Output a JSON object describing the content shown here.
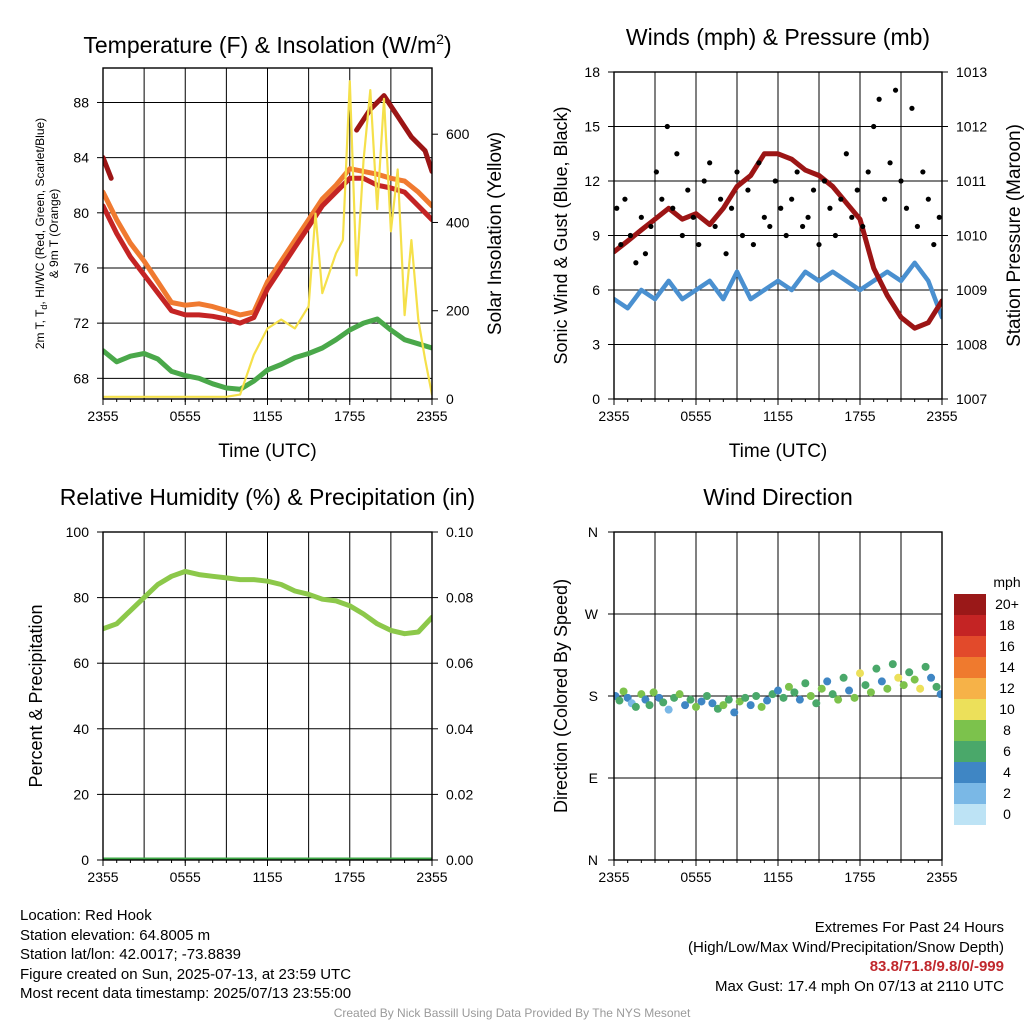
{
  "chart_data": [
    {
      "id": "temp",
      "type": "line",
      "title": "Temperature (F) & Insolation (W/m",
      "title_sup": "2",
      "title_tail": ")",
      "xlabel": "Time (UTC)",
      "ylabel_lines": [
        "2m T, T",
        "d",
        ", HI/WC (Red, Green, Scarlet/Blue)",
        "& 9m T (Orange)"
      ],
      "y2label": "Solar Insolation (Yellow)",
      "x_ticks": [
        "2355",
        "0555",
        "1155",
        "1755",
        "2355"
      ],
      "x_range": [
        0,
        24
      ],
      "ylim": [
        66.5,
        90.5
      ],
      "y_ticks": [
        68,
        72,
        76,
        80,
        84,
        88
      ],
      "y2lim": [
        0,
        750
      ],
      "y2_ticks": [
        0,
        200,
        400,
        600
      ],
      "grid": true,
      "series": [
        {
          "color": "#f07a30",
          "axis": "left",
          "x": [
            0,
            1,
            2,
            3,
            4,
            5,
            6,
            7,
            8,
            9,
            10,
            11,
            12,
            13,
            14,
            15,
            16,
            17,
            18,
            19,
            20,
            21,
            22,
            23,
            24
          ],
          "values": [
            81.5,
            79.5,
            77.8,
            76.5,
            75.0,
            73.5,
            73.3,
            73.4,
            73.2,
            72.9,
            72.6,
            72.8,
            75.0,
            76.5,
            78.0,
            79.5,
            81.0,
            82.0,
            83.2,
            83.0,
            82.8,
            82.5,
            82.3,
            81.5,
            80.5
          ]
        },
        {
          "color": "#c42424",
          "axis": "left",
          "x": [
            0,
            1,
            2,
            3,
            4,
            5,
            6,
            7,
            8,
            9,
            10,
            11,
            12,
            13,
            14,
            15,
            16,
            17,
            18,
            19,
            20,
            21,
            22,
            23,
            24
          ],
          "values": [
            80.5,
            78.5,
            76.8,
            75.5,
            74.2,
            72.9,
            72.6,
            72.6,
            72.5,
            72.3,
            72.0,
            72.4,
            74.5,
            76.0,
            77.5,
            79.0,
            80.5,
            81.5,
            82.5,
            82.5,
            82.0,
            81.8,
            81.5,
            80.5,
            79.5
          ]
        },
        {
          "color": "#9c1515",
          "axis": "left",
          "x": [
            0,
            0.6,
            17.5,
            18.5,
            19.5,
            20.5,
            21.5,
            22.5,
            23.5,
            24
          ],
          "values": [
            84.0,
            82.5,
            null,
            86.0,
            87.5,
            88.5,
            87.0,
            85.5,
            84.5,
            83.0
          ]
        },
        {
          "color": "#4aa84a",
          "axis": "left",
          "x": [
            0,
            1,
            2,
            3,
            4,
            5,
            6,
            7,
            8,
            9,
            10,
            11,
            12,
            13,
            14,
            15,
            16,
            17,
            18,
            19,
            20,
            21,
            22,
            23,
            24
          ],
          "values": [
            70.0,
            69.2,
            69.6,
            69.8,
            69.4,
            68.5,
            68.2,
            68.0,
            67.6,
            67.3,
            67.2,
            67.8,
            68.6,
            69.0,
            69.5,
            69.8,
            70.2,
            70.8,
            71.5,
            72.0,
            72.3,
            71.5,
            70.8,
            70.5,
            70.2
          ]
        },
        {
          "color": "#f5e04a",
          "axis": "right",
          "x": [
            0,
            8,
            9,
            10,
            11,
            12,
            13,
            14,
            15,
            15.5,
            16,
            17,
            17.5,
            18,
            18.5,
            19,
            19.5,
            20,
            20.5,
            21,
            21.5,
            22,
            22.5,
            23,
            23.5,
            24
          ],
          "values": [
            5,
            5,
            5,
            10,
            100,
            160,
            180,
            160,
            210,
            420,
            240,
            330,
            360,
            720,
            280,
            540,
            700,
            430,
            680,
            380,
            520,
            190,
            360,
            180,
            90,
            10
          ]
        }
      ]
    },
    {
      "id": "winds",
      "type": "line",
      "title": "Winds (mph) & Pressure (mb)",
      "xlabel": "Time (UTC)",
      "ylabel": "Sonic Wind & Gust (Blue, Black)",
      "y2label": "Station Pressure (Maroon)",
      "x_ticks": [
        "2355",
        "0555",
        "1155",
        "1755",
        "2355"
      ],
      "x_range": [
        0,
        24
      ],
      "ylim": [
        0,
        18
      ],
      "y_ticks": [
        0,
        3,
        6,
        9,
        12,
        15,
        18
      ],
      "y2lim": [
        1007,
        1013
      ],
      "y2_ticks": [
        1007,
        1008,
        1009,
        1010,
        1011,
        1012,
        1013
      ],
      "grid": true,
      "series": [
        {
          "color": "#4a90d0",
          "axis": "left",
          "x": [
            0,
            1,
            2,
            3,
            4,
            5,
            6,
            7,
            8,
            9,
            10,
            11,
            12,
            13,
            14,
            15,
            16,
            17,
            18,
            19,
            20,
            21,
            22,
            23,
            24
          ],
          "values": [
            5.5,
            5.0,
            6.0,
            5.5,
            6.5,
            5.5,
            6.0,
            6.5,
            5.5,
            7.0,
            5.5,
            6.0,
            6.5,
            6.0,
            7.0,
            6.5,
            7.0,
            6.5,
            6.0,
            6.5,
            7.0,
            6.5,
            7.5,
            6.5,
            4.5
          ]
        },
        {
          "color": "#9c1515",
          "axis": "right",
          "x": [
            0,
            1,
            2,
            3,
            4,
            5,
            6,
            7,
            8,
            9,
            10,
            11,
            12,
            13,
            14,
            15,
            16,
            17,
            18,
            19,
            20,
            21,
            22,
            23,
            24
          ],
          "values": [
            1009.7,
            1009.9,
            1010.1,
            1010.3,
            1010.5,
            1010.3,
            1010.4,
            1010.2,
            1010.5,
            1010.9,
            1011.1,
            1011.5,
            1011.5,
            1011.4,
            1011.2,
            1011.1,
            1010.9,
            1010.6,
            1010.3,
            1009.4,
            1008.9,
            1008.5,
            1008.3,
            1008.4,
            1008.8
          ]
        }
      ],
      "gust_dots": {
        "color": "#000000",
        "x": [
          0.2,
          0.5,
          0.8,
          1.2,
          1.6,
          2.0,
          2.3,
          2.7,
          3.1,
          3.5,
          3.9,
          4.3,
          4.6,
          5.0,
          5.4,
          5.8,
          6.2,
          6.6,
          7.0,
          7.4,
          7.8,
          8.2,
          8.6,
          9.0,
          9.4,
          9.8,
          10.2,
          10.6,
          11.0,
          11.4,
          11.8,
          12.2,
          12.6,
          13.0,
          13.4,
          13.8,
          14.2,
          14.6,
          15.0,
          15.4,
          15.8,
          16.2,
          16.6,
          17.0,
          17.4,
          17.8,
          18.2,
          18.6,
          19.0,
          19.4,
          19.8,
          20.2,
          20.6,
          21.0,
          21.4,
          21.8,
          22.2,
          22.6,
          23.0,
          23.4,
          23.8
        ],
        "values": [
          10.5,
          8.5,
          11.0,
          9.0,
          7.5,
          10.0,
          8.0,
          9.5,
          12.5,
          11.0,
          15.0,
          10.5,
          13.5,
          9.0,
          11.5,
          10.0,
          8.5,
          12.0,
          13.0,
          9.5,
          11.0,
          8.0,
          10.5,
          12.5,
          9.0,
          11.5,
          8.5,
          13.0,
          10.0,
          9.5,
          12.0,
          10.5,
          9.0,
          11.0,
          12.5,
          9.5,
          10.0,
          11.5,
          8.5,
          12.0,
          10.5,
          9.0,
          11.0,
          13.5,
          10.0,
          11.5,
          9.5,
          12.5,
          15.0,
          16.5,
          11.0,
          13.0,
          17.0,
          12.0,
          10.5,
          16.0,
          9.5,
          12.5,
          11.0,
          8.5,
          10.0
        ],
        "max_gust": 17.4
      }
    },
    {
      "id": "rh",
      "type": "line",
      "title": "Relative Humidity (%) & Precipitation (in)",
      "ylabel": "Percent & Precipitation",
      "x_ticks": [
        "2355",
        "0555",
        "1155",
        "1755",
        "2355"
      ],
      "x_range": [
        0,
        24
      ],
      "ylim": [
        0,
        100
      ],
      "y_ticks": [
        0,
        20,
        40,
        60,
        80,
        100
      ],
      "y2lim": [
        0,
        0.1
      ],
      "y2_ticks": [
        "0.00",
        "0.02",
        "0.04",
        "0.06",
        "0.08",
        "0.10"
      ],
      "grid": true,
      "series": [
        {
          "color": "#8cc84a",
          "axis": "left",
          "x": [
            0,
            1,
            2,
            3,
            4,
            5,
            6,
            7,
            8,
            9,
            10,
            11,
            12,
            13,
            14,
            15,
            16,
            17,
            18,
            19,
            20,
            21,
            22,
            23,
            24
          ],
          "values": [
            70.5,
            72.0,
            76.0,
            80.0,
            84.0,
            86.5,
            88.0,
            87.0,
            86.5,
            86.0,
            85.5,
            85.5,
            85.0,
            84.0,
            82.0,
            81.0,
            79.5,
            79.0,
            77.5,
            75.0,
            72.0,
            70.0,
            69.0,
            69.5,
            74.0
          ]
        },
        {
          "color": "#3fa847",
          "axis": "right",
          "x": [
            0,
            24
          ],
          "values": [
            0,
            0
          ]
        }
      ]
    },
    {
      "id": "wdir",
      "type": "scatter",
      "title": "Wind Direction",
      "ylabel": "Direction (Colored By Speed)",
      "x_ticks": [
        "2355",
        "0555",
        "1155",
        "1755",
        "2355"
      ],
      "x_range": [
        0,
        24
      ],
      "ylim": [
        0,
        360
      ],
      "y_ticks": [
        "N",
        "E",
        "S",
        "W",
        "N"
      ],
      "grid": true,
      "x": [
        0.1,
        0.4,
        0.7,
        1.0,
        1.3,
        1.6,
        2.0,
        2.3,
        2.6,
        2.9,
        3.3,
        3.6,
        4.0,
        4.4,
        4.8,
        5.2,
        5.6,
        6.0,
        6.4,
        6.8,
        7.2,
        7.6,
        8.0,
        8.4,
        8.8,
        9.2,
        9.6,
        10.0,
        10.4,
        10.8,
        11.2,
        11.6,
        12.0,
        12.4,
        12.8,
        13.2,
        13.6,
        14.0,
        14.4,
        14.8,
        15.2,
        15.6,
        16.0,
        16.4,
        16.8,
        17.2,
        17.6,
        18.0,
        18.4,
        18.8,
        19.2,
        19.6,
        20.0,
        20.4,
        20.8,
        21.2,
        21.6,
        22.0,
        22.4,
        22.8,
        23.2,
        23.6,
        23.9
      ],
      "values": [
        180,
        175,
        185,
        178,
        172,
        168,
        182,
        176,
        170,
        184,
        178,
        173,
        165,
        178,
        182,
        170,
        176,
        168,
        174,
        180,
        172,
        166,
        170,
        176,
        162,
        174,
        178,
        170,
        180,
        168,
        175,
        182,
        186,
        178,
        190,
        184,
        176,
        194,
        180,
        172,
        188,
        196,
        182,
        176,
        200,
        186,
        178,
        205,
        192,
        184,
        210,
        196,
        188,
        215,
        200,
        192,
        206,
        198,
        188,
        212,
        200,
        190,
        182
      ],
      "speeds": [
        4,
        6,
        8,
        4,
        2,
        6,
        8,
        4,
        6,
        8,
        4,
        6,
        2,
        6,
        8,
        4,
        6,
        8,
        4,
        6,
        4,
        6,
        8,
        6,
        4,
        8,
        6,
        4,
        6,
        8,
        4,
        6,
        4,
        6,
        8,
        6,
        4,
        6,
        8,
        6,
        8,
        4,
        6,
        8,
        6,
        4,
        8,
        10,
        6,
        8,
        6,
        4,
        8,
        6,
        10,
        8,
        6,
        8,
        10,
        6,
        4,
        6,
        4
      ],
      "colorbar": {
        "title": "mph",
        "labels": [
          "0",
          "2",
          "4",
          "6",
          "8",
          "10",
          "12",
          "14",
          "16",
          "18",
          "20+"
        ],
        "colors": [
          "#bde3f5",
          "#7ab8e6",
          "#3f86c4",
          "#4aa86a",
          "#7cc24c",
          "#ece05a",
          "#f6b248",
          "#ef7a2e",
          "#e24a2b",
          "#c42424",
          "#9a1818"
        ]
      }
    }
  ],
  "info": {
    "location": "Location: Red Hook",
    "elevation": "Station elevation: 64.8005 m",
    "latlon": "Station lat/lon: 42.0017; -73.8839",
    "created": "Figure created on Sun, 2025-07-13, at 23:59 UTC",
    "recent": "Most recent data timestamp: 2025/07/13 23:55:00"
  },
  "extremes": {
    "title": "Extremes For Past 24 Hours",
    "subtitle": "(High/Low/Max Wind/Precipitation/Snow Depth)",
    "values": "83.8/71.8/9.8/0/-999",
    "gust": "Max Gust: 17.4 mph On 07/13 at 2110 UTC"
  },
  "credit": "Created By Nick Bassill Using Data Provided By The NYS Mesonet"
}
